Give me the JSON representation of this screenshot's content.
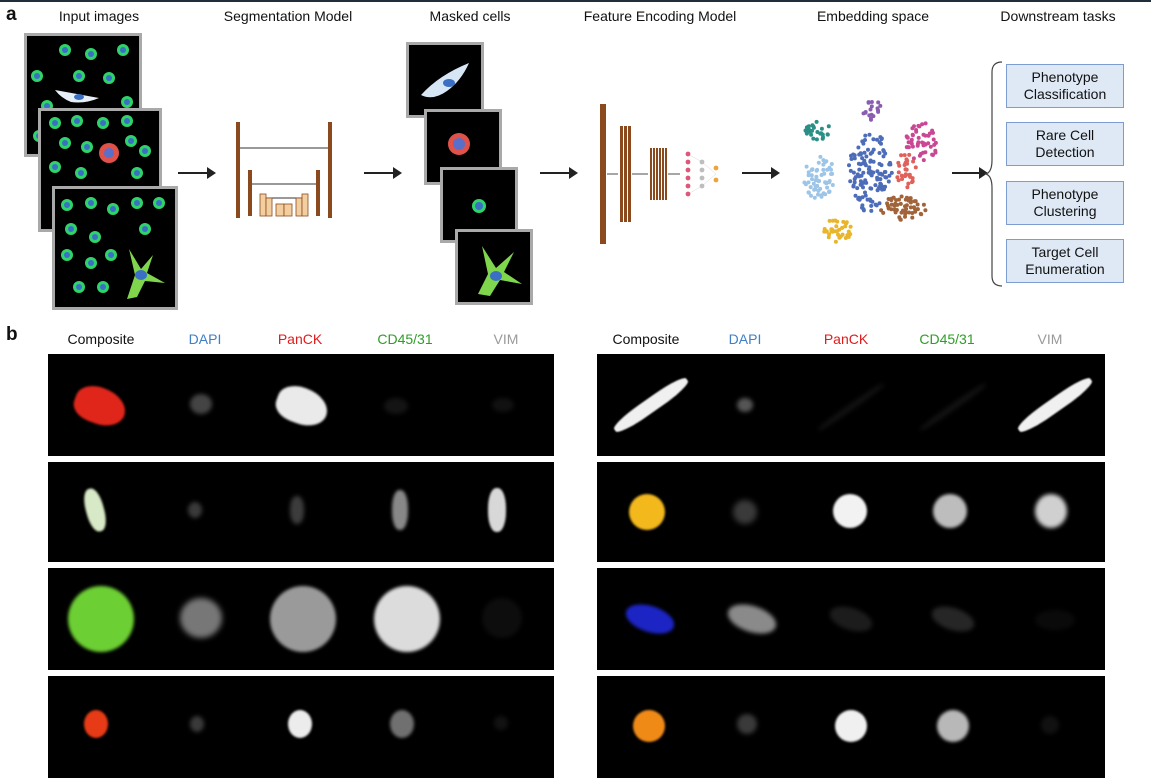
{
  "panel_a": {
    "letter": "a",
    "stages": [
      "Input images",
      "Segmentation Model",
      "Masked cells",
      "Feature Encoding Model",
      "Embedding space",
      "Downstream tasks"
    ],
    "tasks": [
      {
        "line1": "Phenotype",
        "line2": "Classification"
      },
      {
        "line1": "Rare Cell",
        "line2": "Detection"
      },
      {
        "line1": "Phenotype",
        "line2": "Clustering"
      },
      {
        "line1": "Target Cell",
        "line2": "Enumeration"
      }
    ]
  },
  "panel_b": {
    "letter": "b",
    "channels": [
      "Composite",
      "DAPI",
      "PanCK",
      "CD45/31",
      "VIM"
    ],
    "channel_colors": [
      "#000000",
      "#3f7fc6",
      "#e01b1b",
      "#2e9e28",
      "#9a9a9a"
    ]
  }
}
